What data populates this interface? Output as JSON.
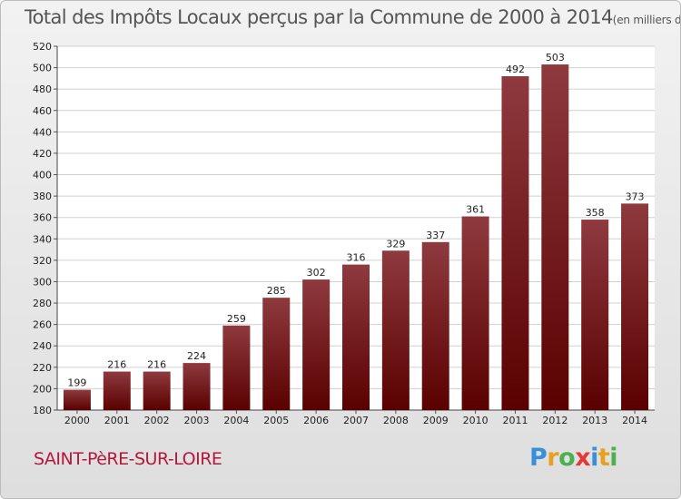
{
  "header": {
    "title": "Total des Impôts Locaux perçus par la Commune de 2000 à 2014",
    "subtitle": "(en milliers d'€)"
  },
  "commune_name": "SAINT-PèRE-SUR-LOIRE",
  "logo": {
    "letters": [
      "P",
      "r",
      "o",
      "x",
      "i",
      "t",
      "i"
    ],
    "colors": [
      "#3a8fd9",
      "#e8a020",
      "#4caf50",
      "#e53935",
      "#3a8fd9",
      "#e8a020",
      "#4caf50"
    ]
  },
  "colors": {
    "bar_top": "#8e3a3e",
    "bar_bottom": "#5a0000",
    "grid": "#d0d0d0",
    "plot_bg": "#ffffff"
  },
  "chart_data": {
    "type": "bar",
    "title": "Total des Impôts Locaux perçus par la Commune de 2000 à 2014",
    "subtitle": "(en milliers d'€)",
    "xlabel": "",
    "ylabel": "",
    "categories": [
      "2000",
      "2001",
      "2002",
      "2003",
      "2004",
      "2005",
      "2006",
      "2007",
      "2008",
      "2009",
      "2010",
      "2011",
      "2012",
      "2013",
      "2014"
    ],
    "values": [
      199,
      216,
      216,
      224,
      259,
      285,
      302,
      316,
      329,
      337,
      361,
      492,
      503,
      358,
      373
    ],
    "ylim": [
      180,
      520
    ],
    "yticks": [
      180,
      200,
      220,
      240,
      260,
      280,
      300,
      320,
      340,
      360,
      380,
      400,
      420,
      440,
      460,
      480,
      500,
      520
    ],
    "grid": true,
    "legend": "none"
  }
}
